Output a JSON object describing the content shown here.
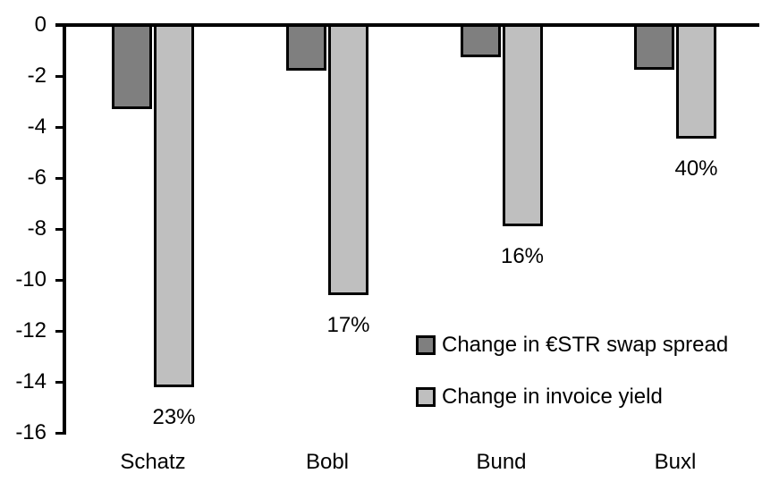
{
  "chart_data": {
    "type": "bar",
    "orientation": "vertical",
    "title": "",
    "xlabel": "",
    "ylabel": "",
    "categories": [
      "Schatz",
      "Bobl",
      "Bund",
      "Buxl"
    ],
    "series": [
      {
        "name": "Change in €STR swap spread",
        "color": "#7F7F7F",
        "values": [
          -3.3,
          -1.8,
          -1.25,
          -1.75
        ]
      },
      {
        "name": "Change in invoice yield",
        "color": "#BFBFBF",
        "values": [
          -14.2,
          -10.6,
          -7.9,
          -4.45
        ]
      }
    ],
    "bar_labels": {
      "attached_to_series": "Change in invoice yield",
      "values": [
        "23%",
        "17%",
        "16%",
        "40%"
      ]
    },
    "y_ticks": [
      "0",
      "-2",
      "-4",
      "-6",
      "-8",
      "-10",
      "-12",
      "-14",
      "-16"
    ],
    "ylim": [
      -16,
      0
    ],
    "grid": false,
    "legend_position": "inside-lower-right",
    "axis_color": "#000000",
    "bar_border_color": "#000000",
    "background_color": "#FFFFFF"
  }
}
